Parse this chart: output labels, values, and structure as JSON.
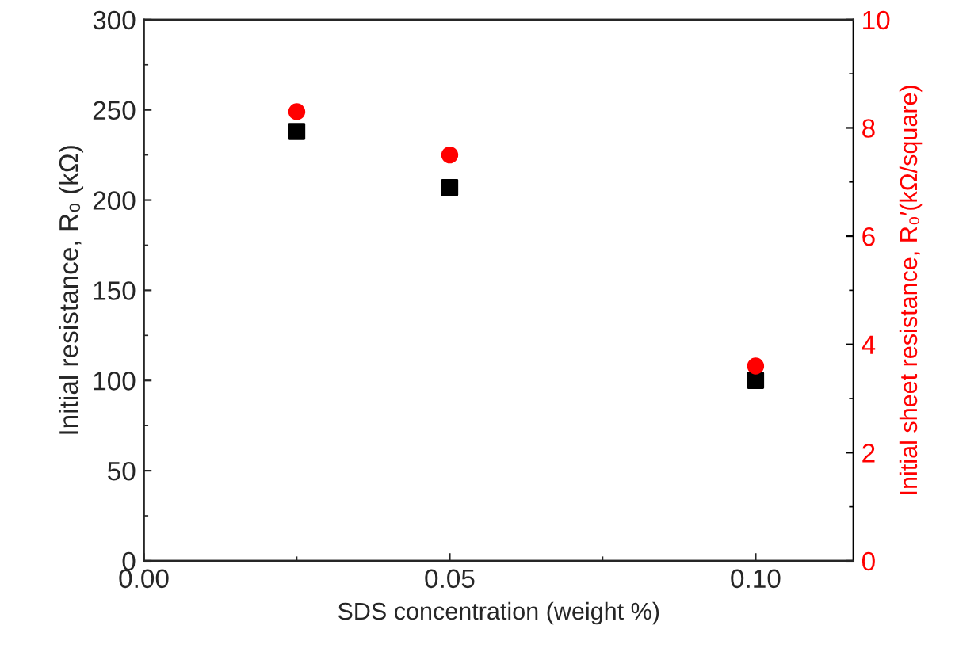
{
  "chart_data": {
    "type": "scatter",
    "xlabel": "SDS concentration (weight %)",
    "ylabel": "Initial resistance, R₀ (kΩ)",
    "y2label": "Initial sheet resistance, R₀′(kΩ/square)",
    "x": [
      0.025,
      0.05,
      0.1
    ],
    "series": [
      {
        "color": "#000000",
        "marker": "square",
        "values": [
          238,
          207,
          100
        ]
      },
      {
        "color": "#ff0000",
        "marker": "circle",
        "axis": "y2",
        "values": [
          8.3,
          7.5,
          3.6
        ]
      }
    ],
    "xlim": [
      0,
      0.116
    ],
    "xticks": [
      {
        "value": 0,
        "label": "0.00"
      },
      {
        "value": 0.05,
        "label": "0.05"
      },
      {
        "value": 0.1,
        "label": "0.10"
      }
    ],
    "ylim": [
      0,
      300
    ],
    "yticks": [
      0,
      50,
      100,
      150,
      200,
      250,
      300
    ],
    "y2lim": [
      0,
      10
    ],
    "y2ticks": [
      0,
      2,
      4,
      6,
      8,
      10
    ],
    "grid": false,
    "legend": false
  }
}
